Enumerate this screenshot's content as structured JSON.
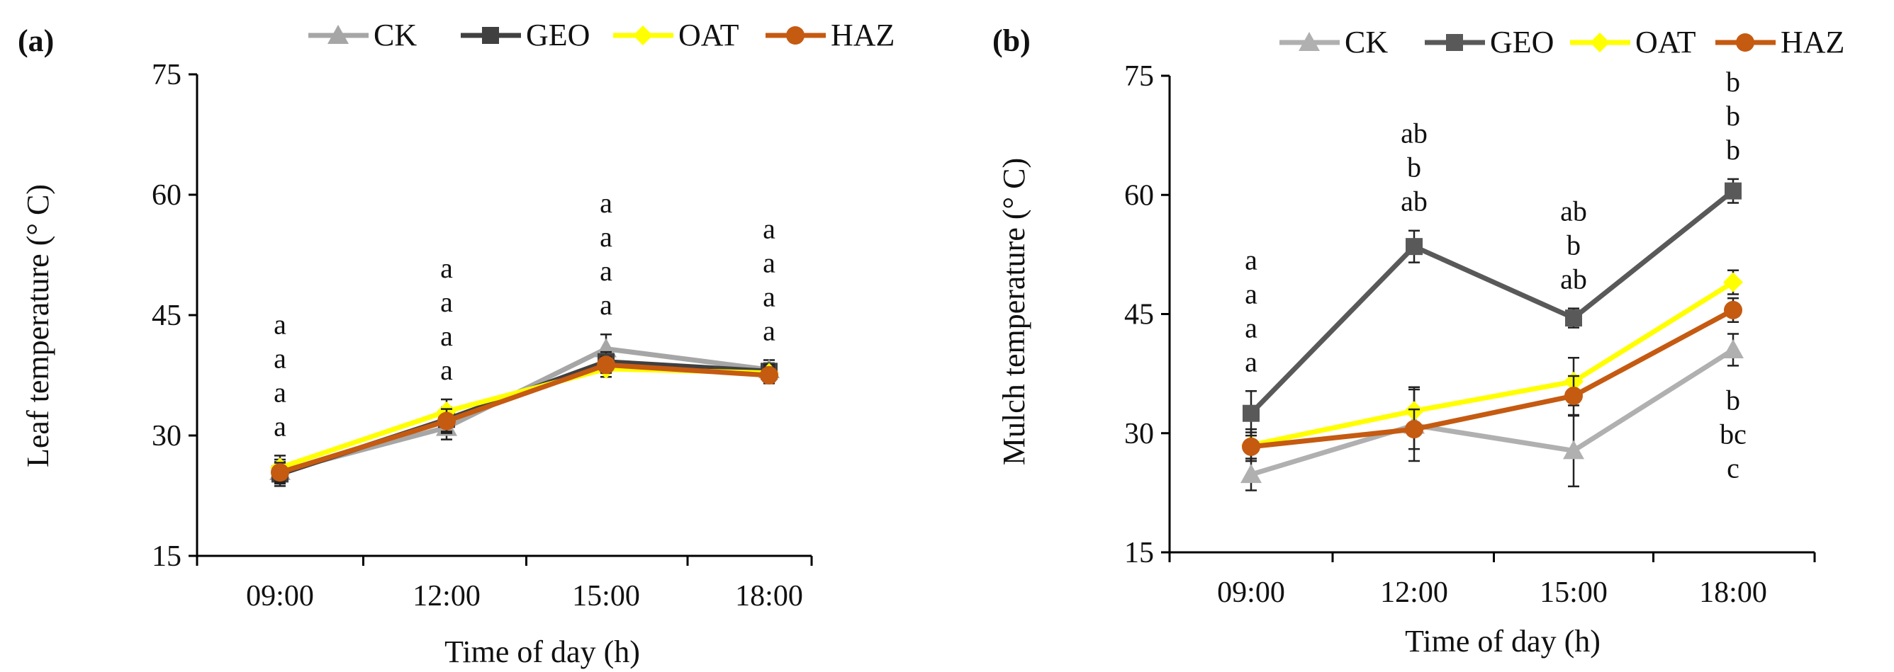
{
  "chart_data": [
    {
      "type": "line",
      "panel_label": "(a)",
      "xlabel": "Time of day (h)",
      "ylabel": "Leaf temperature (° C)",
      "categories": [
        "09:00",
        "12:00",
        "15:00",
        "18:00"
      ],
      "ylim": [
        15,
        75
      ],
      "yticks": [
        "15",
        "30",
        "45",
        "60",
        "75"
      ],
      "legend_position": "top",
      "series": [
        {
          "name": "CK",
          "color": "#a6a6a6",
          "marker": "triangle",
          "values": [
            25.5,
            31,
            40.8,
            38.2
          ],
          "errors": [
            1.5,
            1.5,
            1.8,
            1.2
          ]
        },
        {
          "name": "GEO",
          "color": "#404040",
          "marker": "square",
          "values": [
            25.2,
            32,
            39.2,
            38
          ],
          "errors": [
            1.5,
            1.5,
            1.2,
            1.0
          ]
        },
        {
          "name": "OAT",
          "color": "#ffff00",
          "marker": "diamond",
          "values": [
            26,
            33,
            38.3,
            37.8
          ],
          "errors": [
            1.5,
            1.5,
            1.0,
            1.0
          ]
        },
        {
          "name": "HAZ",
          "color": "#c55a11",
          "marker": "circle",
          "values": [
            25.4,
            31.8,
            38.8,
            37.5
          ],
          "errors": [
            1.2,
            1.5,
            1.0,
            1.0
          ]
        }
      ],
      "letters": [
        [
          "a",
          "a",
          "a",
          "a"
        ],
        [
          "a",
          "a",
          "a",
          "a"
        ],
        [
          "a",
          "a",
          "a",
          "a"
        ],
        [
          "a",
          "a",
          "a",
          "a"
        ]
      ]
    },
    {
      "type": "line",
      "panel_label": "(b)",
      "xlabel": "Time of day (h)",
      "ylabel": "Mulch temperature (° C)",
      "categories": [
        "09:00",
        "12:00",
        "15:00",
        "18:00"
      ],
      "ylim": [
        15,
        75
      ],
      "yticks": [
        "15",
        "30",
        "45",
        "60",
        "75"
      ],
      "legend_position": "top",
      "series": [
        {
          "name": "CK",
          "color": "#b0b0b0",
          "marker": "triangle",
          "values": [
            24.8,
            31,
            27.8,
            40.5
          ],
          "errors": [
            2.0,
            4.5,
            4.5,
            2.0
          ]
        },
        {
          "name": "GEO",
          "color": "#595959",
          "marker": "square",
          "values": [
            32.5,
            53.5,
            44.5,
            60.5
          ],
          "errors": [
            2.8,
            2.0,
            1.2,
            1.5
          ]
        },
        {
          "name": "OAT",
          "color": "#ffff00",
          "marker": "diamond",
          "values": [
            28.5,
            32.8,
            36.5,
            49
          ],
          "errors": [
            2.0,
            3.0,
            3.0,
            1.5
          ]
        },
        {
          "name": "HAZ",
          "color": "#c55a11",
          "marker": "circle",
          "values": [
            28.3,
            30.5,
            34.7,
            45.5
          ],
          "errors": [
            1.8,
            2.5,
            2.5,
            1.5
          ]
        }
      ],
      "letters": [
        [
          "a",
          "ab",
          "ab",
          "b"
        ],
        [
          "a",
          "b",
          "b",
          "b"
        ],
        [
          "a",
          "ab",
          "ab",
          "b"
        ],
        [
          "a",
          "",
          "",
          ""
        ]
      ],
      "letters_below_18": [
        "b",
        "bc",
        "c"
      ]
    }
  ]
}
